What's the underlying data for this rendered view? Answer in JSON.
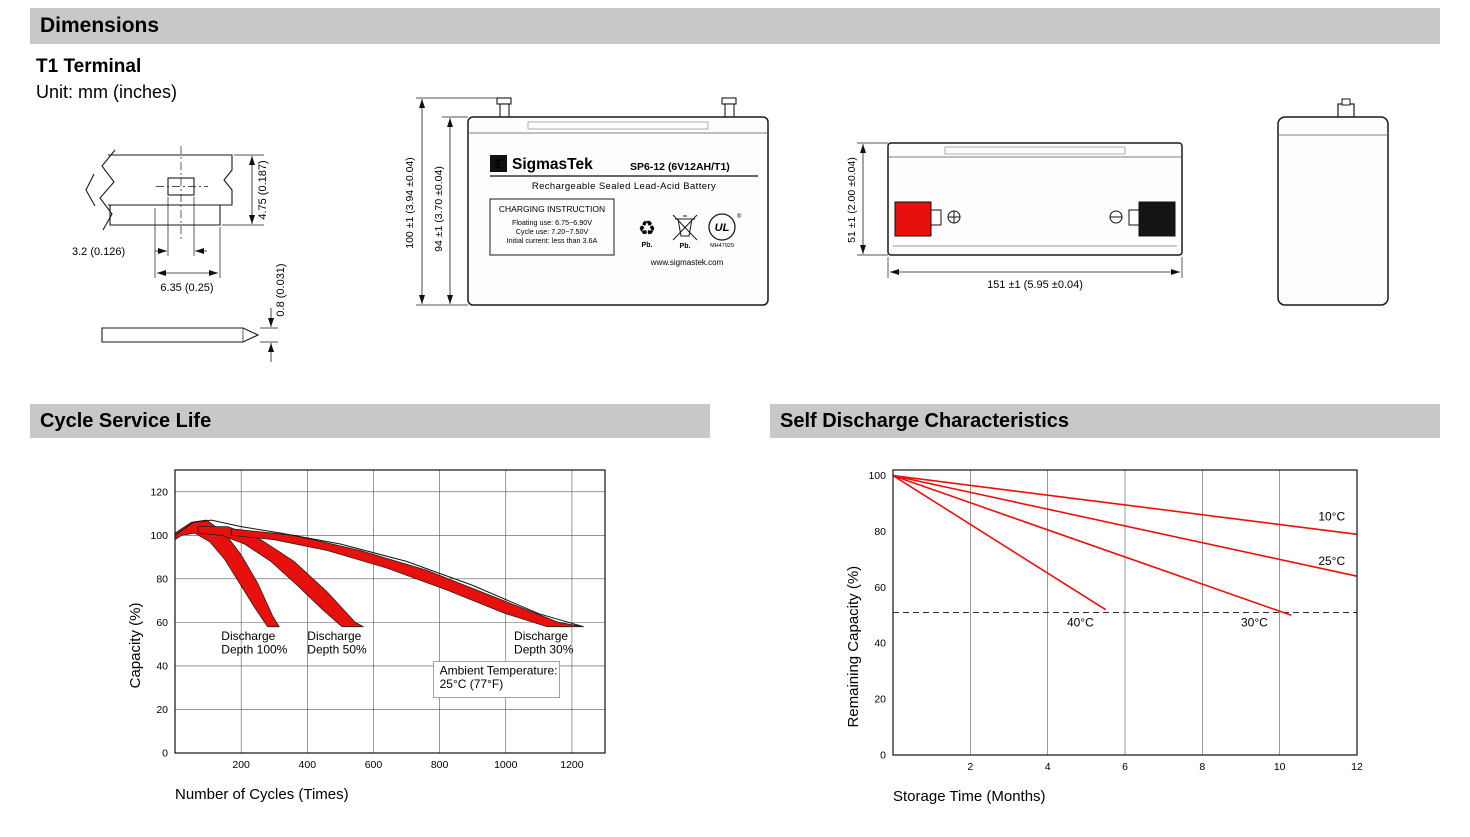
{
  "sections": {
    "dimensions": {
      "title": "Dimensions",
      "subtitle": "T1 Terminal",
      "unit_note": "Unit: mm (inches)"
    },
    "cycle_life": {
      "title": "Cycle Service Life"
    },
    "self_discharge": {
      "title": "Self Discharge Characteristics"
    }
  },
  "terminal_drawing": {
    "dim_tab_height": "4.75 (0.187)",
    "dim_hole_width": "3.2 (0.126)",
    "dim_tab_width": "6.35 (0.25)",
    "dim_thickness": "0.8 (0.031)"
  },
  "front_view": {
    "logo_glyph": "Σ",
    "brand": "SigmasTek",
    "model": "SP6-12 (6V12AH/T1)",
    "subtitle": "Rechargeable Sealed Lead-Acid Battery",
    "charging_title": "CHARGING INSTRUCTION",
    "charging_line1": "Floating use: 6.75~6.90V",
    "charging_line2": "Cycle use: 7.20~7.50V",
    "charging_line3": "Initial current: less than 3.6A",
    "recycle_glyph": "♻",
    "pb1": "Pb.",
    "pb2": "Pb.",
    "ul_text": "UL",
    "ul_reg": "®",
    "ul_code": "MH47929",
    "website": "www.sigmastek.com",
    "dim_height_outer": "100 ±1 (3.94 ±0.04)",
    "dim_height_inner": "94 ±1 (3.70 ±0.04)"
  },
  "side_view": {
    "dim_width": "51 ±1 (2.00 ±0.04)",
    "dim_length": "151 ±1 (5.95 ±0.04)"
  },
  "chart_data": [
    {
      "name": "cycle_service_life",
      "type": "area",
      "title": "",
      "xlabel": "Number of Cycles (Times)",
      "ylabel": "Capacity (%)",
      "xlim": [
        0,
        1300
      ],
      "ylim": [
        0,
        130
      ],
      "xticks": [
        200,
        400,
        600,
        800,
        1000,
        1200
      ],
      "yticks": [
        0,
        20,
        40,
        60,
        80,
        100,
        120
      ],
      "grid": true,
      "band_color": "#e8100c",
      "bands": [
        {
          "label": "Discharge Depth 100%",
          "points": [
            [
              0,
              101
            ],
            [
              50,
              106
            ],
            [
              95,
              107
            ],
            [
              150,
              101
            ],
            [
              200,
              91
            ],
            [
              250,
              78
            ],
            [
              295,
              63
            ],
            [
              315,
              58
            ],
            [
              280,
              58
            ],
            [
              240,
              67
            ],
            [
              195,
              78
            ],
            [
              150,
              89
            ],
            [
              105,
              97
            ],
            [
              60,
              101
            ],
            [
              20,
              100
            ],
            [
              0,
              98
            ]
          ]
        },
        {
          "label": "Discharge Depth 50%",
          "points": [
            [
              70,
              104
            ],
            [
              160,
              104
            ],
            [
              260,
              98
            ],
            [
              360,
              88
            ],
            [
              460,
              74
            ],
            [
              545,
              60
            ],
            [
              570,
              58
            ],
            [
              505,
              58
            ],
            [
              445,
              66
            ],
            [
              370,
              77
            ],
            [
              290,
              88
            ],
            [
              210,
              96
            ],
            [
              140,
              100
            ],
            [
              70,
              101
            ]
          ]
        },
        {
          "label": "Discharge Depth 30%",
          "points": [
            [
              170,
              103
            ],
            [
              360,
              100
            ],
            [
              560,
              93
            ],
            [
              760,
              84
            ],
            [
              960,
              72
            ],
            [
              1160,
              60
            ],
            [
              1235,
              58
            ],
            [
              1125,
              58
            ],
            [
              1000,
              64
            ],
            [
              820,
              75
            ],
            [
              640,
              85
            ],
            [
              460,
              93
            ],
            [
              300,
              98
            ],
            [
              170,
              100
            ]
          ]
        }
      ],
      "envelope": [
        [
          0,
          100
        ],
        [
          55,
          106
        ],
        [
          110,
          107
        ],
        [
          200,
          104
        ],
        [
          320,
          101
        ],
        [
          500,
          96
        ],
        [
          700,
          88
        ],
        [
          900,
          77
        ],
        [
          1100,
          64
        ],
        [
          1235,
          58
        ]
      ],
      "annotations": [
        {
          "lines": [
            "Discharge",
            "Depth 100%"
          ],
          "x": 140,
          "y": 52,
          "boxed": false
        },
        {
          "lines": [
            "Discharge",
            "Depth 50%"
          ],
          "x": 400,
          "y": 52,
          "boxed": false
        },
        {
          "lines": [
            "Discharge",
            "Depth 30%"
          ],
          "x": 1025,
          "y": 52,
          "boxed": false
        },
        {
          "lines": [
            "Ambient Temperature:",
            "25°C (77°F)"
          ],
          "x": 800,
          "y": 36,
          "boxed": true
        }
      ]
    },
    {
      "name": "self_discharge",
      "type": "line",
      "title": "",
      "xlabel": "Storage Time (Months)",
      "ylabel": "Remaining Capacity (%)",
      "xlim": [
        0,
        12
      ],
      "ylim": [
        0,
        102
      ],
      "xticks": [
        2,
        4,
        6,
        8,
        10,
        12
      ],
      "yticks": [
        0,
        20,
        40,
        60,
        80,
        100
      ],
      "grid": "vertical-only",
      "line_color": "#e8100c",
      "series": [
        {
          "name": "10°C",
          "points": [
            [
              0,
              100
            ],
            [
              12,
              79
            ]
          ],
          "label_x": 11.0,
          "label_y": 84
        },
        {
          "name": "25°C",
          "points": [
            [
              0,
              100
            ],
            [
              12,
              64
            ]
          ],
          "label_x": 11.0,
          "label_y": 68
        },
        {
          "name": "30°C",
          "points": [
            [
              0,
              100
            ],
            [
              10.3,
              50
            ]
          ],
          "label_x": 9.0,
          "label_y": 46
        },
        {
          "name": "40°C",
          "points": [
            [
              0,
              100
            ],
            [
              5.5,
              52
            ]
          ],
          "label_x": 4.5,
          "label_y": 46
        }
      ],
      "dashed_line_y": 51
    }
  ]
}
